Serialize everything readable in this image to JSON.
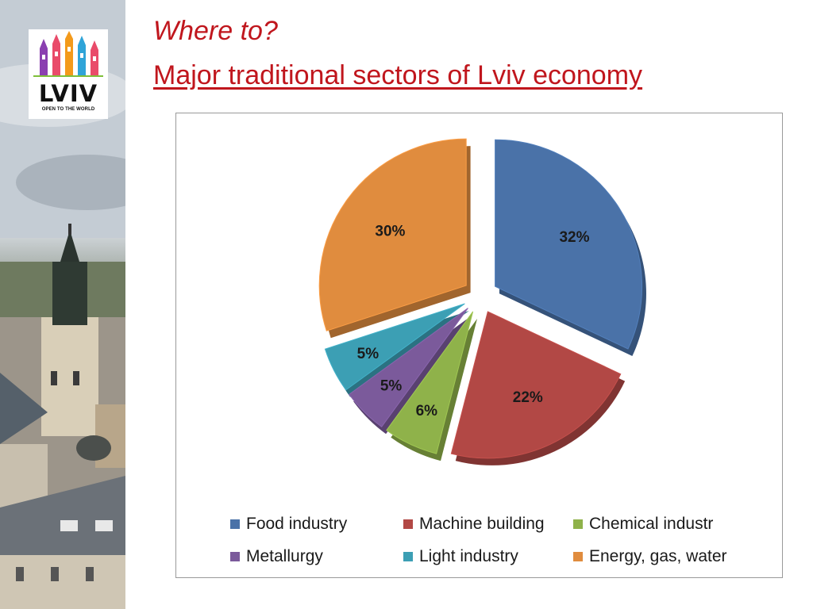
{
  "slide": {
    "title_line1": "Where to?",
    "title_line2": "Major traditional sectors of Lviv economy"
  },
  "logo": {
    "text": "LVIV",
    "tagline": "OPEN TO THE WORLD",
    "colors": [
      "#e94b6a",
      "#f39a1b",
      "#8a3fb0",
      "#2fa4d8",
      "#7fbf3a"
    ]
  },
  "chart_data": {
    "type": "pie",
    "style": "exploded-3d",
    "legend_position": "bottom",
    "series": [
      {
        "name": "Food industry",
        "value": 32,
        "label": "32%",
        "color": "#4a72a8"
      },
      {
        "name": "Machine building",
        "value": 22,
        "label": "22%",
        "color": "#b24845"
      },
      {
        "name": "Chemical industr",
        "value": 6,
        "label": "6%",
        "color": "#8fb24a"
      },
      {
        "name": "Metallurgy",
        "value": 5,
        "label": "5%",
        "color": "#7b5a9b"
      },
      {
        "name": "Light industry",
        "value": 5,
        "label": "5%",
        "color": "#3c9fb4"
      },
      {
        "name": "Energy, gas, water",
        "value": 30,
        "label": "30%",
        "color": "#e08c3e"
      }
    ]
  }
}
